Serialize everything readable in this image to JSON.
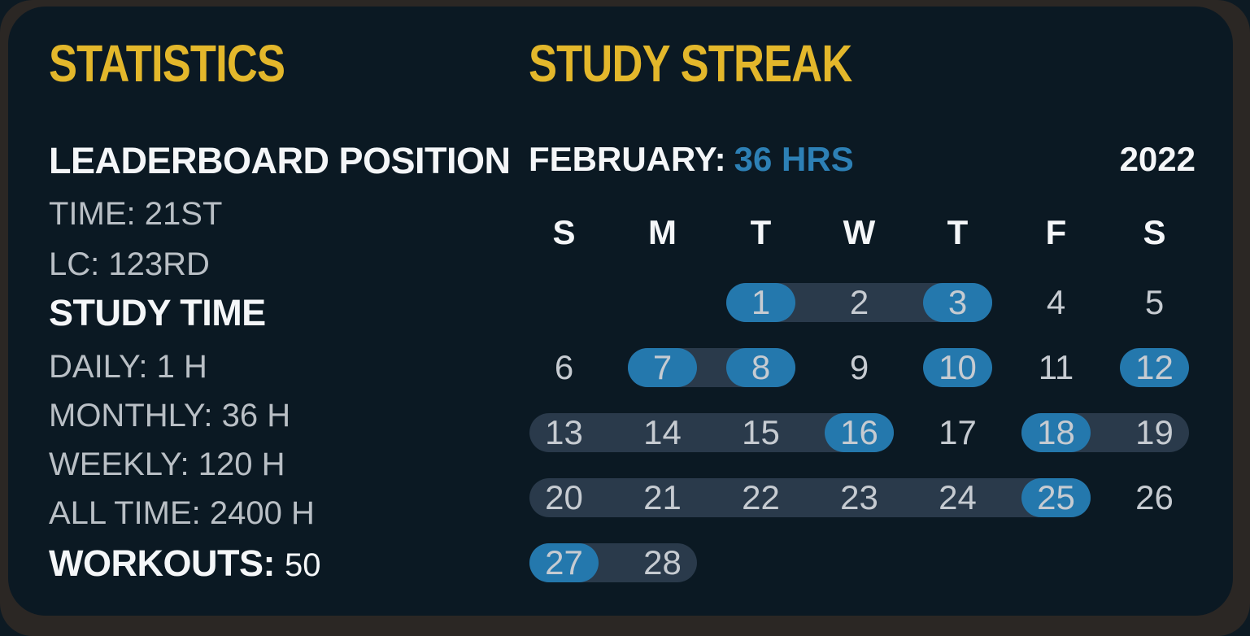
{
  "theme": {
    "colors": {
      "page_bg": "#0d1a23",
      "frame": "#2b2724",
      "card_bg": "#0b1923",
      "title_yellow": "#e3b72b",
      "heading_white": "#f4f6f8",
      "label_gray": "#b9bfc5",
      "day_gray": "#c6cbd1",
      "accent_blue": "#2d80b5",
      "pill_blue": "#2478ad",
      "band": "#2a3a4b"
    }
  },
  "statistics": {
    "title": "STATISTICS",
    "leaderboard_heading": "LEADERBOARD POSITION",
    "leaderboard_items": [
      "TIME: 21ST",
      "LC: 123RD"
    ],
    "study_time_heading": "STUDY TIME",
    "study_time_items": [
      "DAILY: 1 H",
      "MONTHLY: 36 H",
      "WEEKLY: 120 H",
      "ALL TIME: 2400 H"
    ],
    "workouts_label": "WORKOUTS:",
    "workouts_value": "50"
  },
  "streak": {
    "title": "STUDY STREAK",
    "month_label": "FEBRUARY:",
    "month_hours": "36 HRS",
    "year": "2022",
    "day_headers": [
      "S",
      "M",
      "T",
      "W",
      "T",
      "F",
      "S"
    ],
    "weeks": [
      [
        null,
        null,
        {
          "d": "1",
          "hl": true,
          "band": "start"
        },
        {
          "d": "2",
          "band": "mid"
        },
        {
          "d": "3",
          "hl": true,
          "band": "end"
        },
        {
          "d": "4"
        },
        {
          "d": "5"
        }
      ],
      [
        {
          "d": "6"
        },
        {
          "d": "7",
          "hl": true,
          "band": "start"
        },
        {
          "d": "8",
          "hl": true,
          "band": "end"
        },
        {
          "d": "9"
        },
        {
          "d": "10",
          "hl": true
        },
        {
          "d": "11"
        },
        {
          "d": "12",
          "hl": true
        }
      ],
      [
        {
          "d": "13",
          "band": "start"
        },
        {
          "d": "14",
          "band": "mid"
        },
        {
          "d": "15",
          "band": "mid"
        },
        {
          "d": "16",
          "hl": true,
          "band": "end"
        },
        {
          "d": "17"
        },
        {
          "d": "18",
          "hl": true,
          "band": "start"
        },
        {
          "d": "19",
          "band": "end"
        }
      ],
      [
        {
          "d": "20",
          "band": "start"
        },
        {
          "d": "21",
          "band": "mid"
        },
        {
          "d": "22",
          "band": "mid"
        },
        {
          "d": "23",
          "band": "mid"
        },
        {
          "d": "24",
          "band": "mid"
        },
        {
          "d": "25",
          "hl": true,
          "band": "end"
        },
        {
          "d": "26"
        }
      ],
      [
        {
          "d": "27",
          "hl": true,
          "band": "start"
        },
        {
          "d": "28",
          "band": "end"
        },
        null,
        null,
        null,
        null,
        null
      ]
    ]
  }
}
